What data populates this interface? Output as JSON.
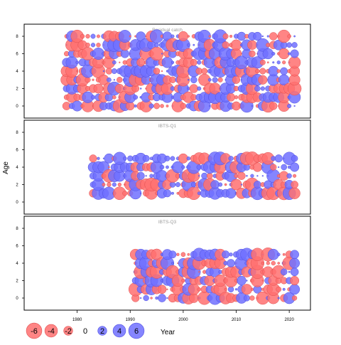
{
  "chart_data": {
    "type": "scatter",
    "subtype": "bubble-residual-plot",
    "ylabel": "Age",
    "xlabel": "Year",
    "xlim": [
      1970,
      2024
    ],
    "x_ticks": [
      1980,
      1990,
      2000,
      2010,
      2020
    ],
    "ylim": [
      -1,
      9
    ],
    "y_ticks": [
      0,
      2,
      4,
      6,
      8
    ],
    "colors": {
      "negative": "#ff7070",
      "positive": "#7070ff",
      "stroke_negative": "#e05050",
      "stroke_positive": "#5050e0"
    },
    "legend": {
      "values": [
        -6,
        -4,
        -2,
        0,
        2,
        4,
        6
      ],
      "labels": [
        "-6",
        "-4",
        "-2",
        "0",
        "2",
        "4",
        "6"
      ]
    },
    "panels": [
      {
        "title": "Residual catch",
        "years": [
          1978,
          2021
        ],
        "ages": [
          0,
          8
        ],
        "seed": 11
      },
      {
        "title": "IBTS-Q1",
        "years": [
          1983,
          2021
        ],
        "ages": [
          1,
          5
        ],
        "seed": 29
      },
      {
        "title": "IBTS-Q3",
        "years": [
          1991,
          2021
        ],
        "ages": [
          0,
          5
        ],
        "seed": 47
      }
    ]
  }
}
